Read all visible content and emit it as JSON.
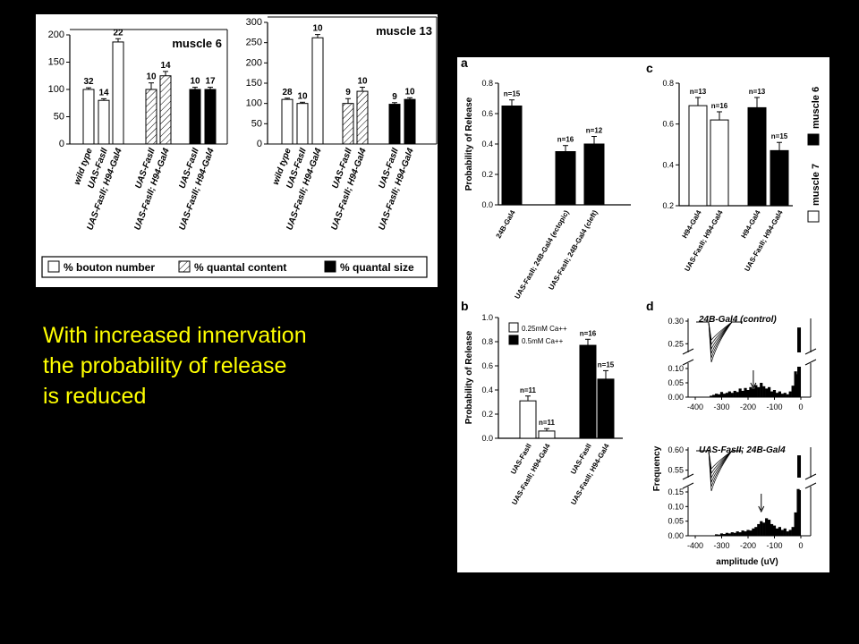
{
  "slide": {
    "text_lines": [
      "With increased innervation",
      "the probability of release",
      "is reduced"
    ]
  },
  "colors": {
    "background": "#000000",
    "text": "#ffff00",
    "panel": "#ffffff",
    "ink": "#000000"
  },
  "chart_data": [
    {
      "id": "m6",
      "type": "bar",
      "title": "muscle 6",
      "ylim": [
        0,
        200
      ],
      "yticks": [
        "0",
        "50",
        "100",
        "150",
        "200"
      ],
      "groups": [
        {
          "pattern": "open",
          "bars": [
            {
              "label": "wild type",
              "value": 100,
              "err": 3,
              "n": "32"
            },
            {
              "label": "UAS-FasII",
              "value": 80,
              "err": 3,
              "n": "14"
            },
            {
              "label": "UAS-FasII; H94-Gal4",
              "value": 187,
              "err": 6,
              "n": "22"
            }
          ]
        },
        {
          "pattern": "hatched",
          "bars": [
            {
              "label": "UAS-FasII",
              "value": 100,
              "err": 12,
              "n": "10"
            },
            {
              "label": "UAS-FasII; H94-Gal4",
              "value": 125,
              "err": 8,
              "n": "14"
            }
          ]
        },
        {
          "pattern": "solid",
          "bars": [
            {
              "label": "UAS-FasII",
              "value": 100,
              "err": 4,
              "n": "10"
            },
            {
              "label": "UAS-FasII; H94-Gal4",
              "value": 100,
              "err": 4,
              "n": "17"
            }
          ]
        }
      ]
    },
    {
      "id": "m13",
      "type": "bar",
      "title": "muscle 13",
      "ylim": [
        0,
        300
      ],
      "yticks": [
        "0",
        "50",
        "100",
        "150",
        "200",
        "250",
        "300"
      ],
      "groups": [
        {
          "pattern": "open",
          "bars": [
            {
              "label": "wild type",
              "value": 110,
              "err": 3,
              "n": "28"
            },
            {
              "label": "UAS-FasII",
              "value": 100,
              "err": 3,
              "n": "10"
            },
            {
              "label": "UAS-FasII; H94-Gal4",
              "value": 262,
              "err": 8,
              "n": "10"
            }
          ]
        },
        {
          "pattern": "hatched",
          "bars": [
            {
              "label": "UAS-FasII",
              "value": 100,
              "err": 12,
              "n": "9"
            },
            {
              "label": "UAS-FasII; H94-Gal4",
              "value": 130,
              "err": 10,
              "n": "10"
            }
          ]
        },
        {
          "pattern": "solid",
          "bars": [
            {
              "label": "UAS-FasII",
              "value": 98,
              "err": 4,
              "n": "9"
            },
            {
              "label": "UAS-FasII; H94-Gal4",
              "value": 110,
              "err": 4,
              "n": "10"
            }
          ]
        }
      ]
    },
    {
      "id": "legend1",
      "type": "legend",
      "entries": [
        {
          "pattern": "open",
          "label": "% bouton number"
        },
        {
          "pattern": "hatched",
          "label": "% quantal content"
        },
        {
          "pattern": "solid",
          "label": "% quantal size"
        }
      ]
    },
    {
      "id": "a",
      "type": "bar",
      "panel_label": "a",
      "ylabel": "Probability of Release",
      "ylim": [
        0,
        0.8
      ],
      "yticks": [
        "0.0",
        "0.2",
        "0.4",
        "0.6",
        "0.8"
      ],
      "bars": [
        {
          "label": "24B-Gal4",
          "value": 0.65,
          "err": 0.04,
          "n": "n=15",
          "pattern": "solid"
        },
        {
          "label": "UAS-FasII; 24B-Gal4 (ectopic)",
          "value": 0.35,
          "err": 0.04,
          "n": "n=16",
          "pattern": "solid"
        },
        {
          "label": "UAS-FasII; 24B-Gal4 (cleft)",
          "value": 0.4,
          "err": 0.05,
          "n": "n=12",
          "pattern": "solid"
        }
      ]
    },
    {
      "id": "c",
      "type": "bar",
      "panel_label": "c",
      "ylim": [
        0.2,
        0.8
      ],
      "yticks": [
        "0.2",
        "0.4",
        "0.6",
        "0.8"
      ],
      "legend": [
        {
          "pattern": "open",
          "label": "muscle 7"
        },
        {
          "pattern": "solid",
          "label": "muscle 6"
        }
      ],
      "bars": [
        {
          "label": "H94-Gal4",
          "value": 0.69,
          "err": 0.04,
          "n": "n=13",
          "pattern": "open"
        },
        {
          "label": "UAS-FasII; H94-Gal4",
          "value": 0.62,
          "err": 0.04,
          "n": "n=16",
          "pattern": "open"
        },
        {
          "label": "H94-Gal4",
          "value": 0.68,
          "err": 0.05,
          "n": "n=13",
          "pattern": "solid"
        },
        {
          "label": "UAS-FasII; H94-Gal4",
          "value": 0.47,
          "err": 0.04,
          "n": "n=15",
          "pattern": "solid"
        }
      ]
    },
    {
      "id": "b",
      "type": "bar",
      "panel_label": "b",
      "ylabel": "Probability of Release",
      "ylim": [
        0,
        1.0
      ],
      "yticks": [
        "0.0",
        "0.2",
        "0.4",
        "0.6",
        "0.8",
        "1.0"
      ],
      "legend": [
        {
          "pattern": "open",
          "label": "0.25mM Ca++"
        },
        {
          "pattern": "solid",
          "label": "0.5mM Ca++"
        }
      ],
      "bars": [
        {
          "label": "UAS-FasII",
          "value": 0.31,
          "err": 0.04,
          "n": "n=11",
          "pattern": "open"
        },
        {
          "label": "UAS-FasII; H94-Gal4",
          "value": 0.06,
          "err": 0.02,
          "n": "n=11",
          "pattern": "open"
        },
        {
          "label": "UAS-FasII",
          "value": 0.77,
          "err": 0.05,
          "n": "n=16",
          "pattern": "solid"
        },
        {
          "label": "UAS-FasII; H94-Gal4",
          "value": 0.49,
          "err": 0.07,
          "n": "n=15",
          "pattern": "solid"
        }
      ]
    },
    {
      "id": "d",
      "type": "bar",
      "panel_label": "d",
      "ylabel": "Frequency",
      "xlabel": "amplitude (uV)",
      "xticks": [
        "-400",
        "-300",
        "-200",
        "-100",
        "0"
      ],
      "xlim": [
        -400,
        0
      ],
      "subplots": [
        {
          "title": "24B-Gal4 (control)",
          "yticks_upper": [
            "0.30",
            "0.25"
          ],
          "yticks_lower": [
            "0.10",
            "0.05",
            "0.00"
          ],
          "break_at": 0.12,
          "peak_value": 0.29,
          "arrow_at": -180,
          "bins": [
            -340,
            -330,
            -320,
            -310,
            -300,
            -290,
            -280,
            -270,
            -260,
            -250,
            -240,
            -230,
            -220,
            -210,
            -200,
            -190,
            -180,
            -170,
            -160,
            -150,
            -140,
            -130,
            -120,
            -110,
            -100,
            -90,
            -80,
            -70,
            -60,
            -50,
            -40,
            -30,
            -20,
            -10
          ],
          "values": [
            0.005,
            0.008,
            0.012,
            0.01,
            0.018,
            0.012,
            0.015,
            0.02,
            0.015,
            0.022,
            0.018,
            0.03,
            0.022,
            0.032,
            0.025,
            0.035,
            0.03,
            0.042,
            0.035,
            0.05,
            0.038,
            0.03,
            0.035,
            0.02,
            0.025,
            0.015,
            0.02,
            0.012,
            0.015,
            0.01,
            0.02,
            0.04,
            0.09,
            0.08
          ]
        },
        {
          "title": "UAS-FasII; 24B-Gal4",
          "yticks_upper": [
            "0.60",
            "0.55"
          ],
          "yticks_lower": [
            "0.15",
            "0.10",
            "0.05",
            "0.00"
          ],
          "break_at": 0.17,
          "peak_value": 0.6,
          "arrow_at": -150,
          "bins": [
            -320,
            -310,
            -300,
            -290,
            -280,
            -270,
            -260,
            -250,
            -240,
            -230,
            -220,
            -210,
            -200,
            -190,
            -180,
            -170,
            -160,
            -150,
            -140,
            -130,
            -120,
            -110,
            -100,
            -90,
            -80,
            -70,
            -60,
            -50,
            -40,
            -30,
            -20,
            -10
          ],
          "values": [
            0.005,
            0.004,
            0.008,
            0.006,
            0.01,
            0.008,
            0.012,
            0.01,
            0.015,
            0.012,
            0.018,
            0.015,
            0.02,
            0.018,
            0.025,
            0.03,
            0.04,
            0.05,
            0.045,
            0.06,
            0.055,
            0.04,
            0.035,
            0.025,
            0.03,
            0.02,
            0.025,
            0.015,
            0.02,
            0.03,
            0.08,
            0.16
          ]
        }
      ]
    }
  ]
}
